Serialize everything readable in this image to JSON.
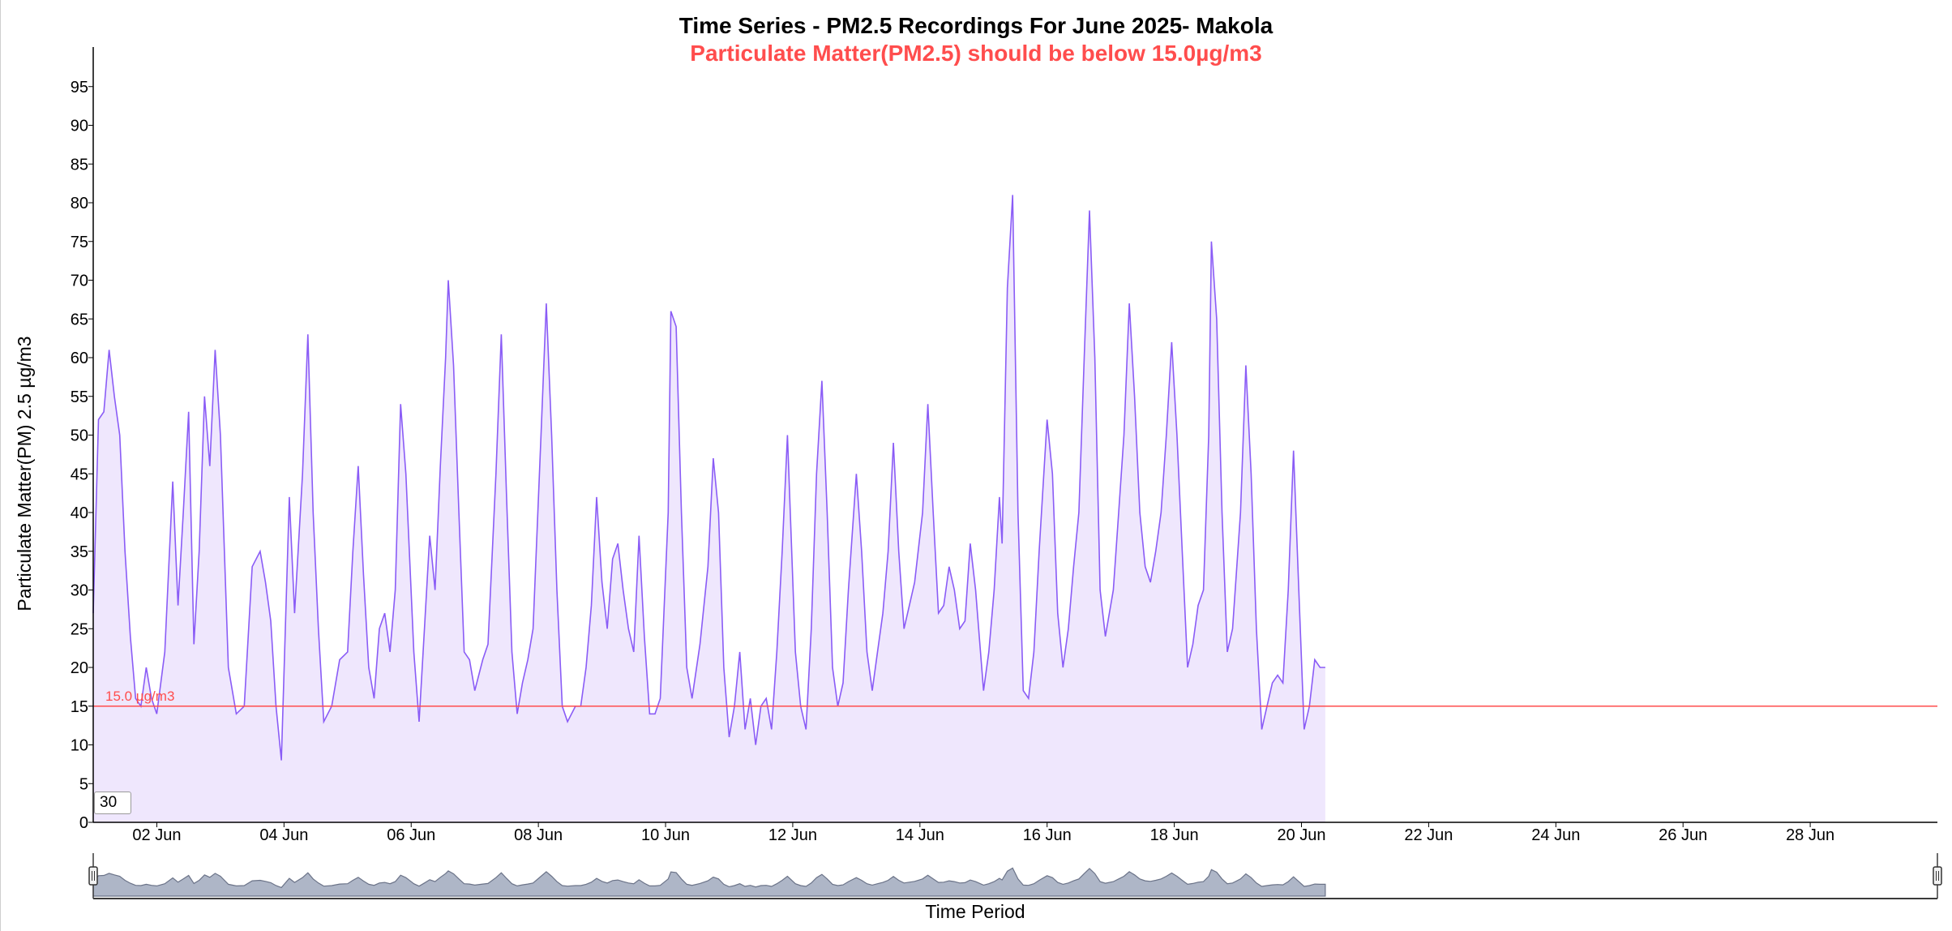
{
  "chart_data": {
    "type": "area",
    "title": "Time Series - PM2.5 Recordings For June 2025- Makola",
    "subtitle": "Particulate Matter(PM2.5) should be below 15.0µg/m3",
    "xlabel": "Time Period",
    "ylabel": "Particulate Matter(PM) 2.5 µg/m3",
    "ylim": [
      0,
      99
    ],
    "y_ticks": [
      0,
      5,
      10,
      15,
      20,
      25,
      30,
      35,
      40,
      45,
      50,
      55,
      60,
      65,
      70,
      75,
      80,
      85,
      90,
      95
    ],
    "x_range": [
      "2025-06-01T00:00",
      "2025-06-30T00:00"
    ],
    "x_ticks": [
      "02 Jun",
      "04 Jun",
      "06 Jun",
      "08 Jun",
      "10 Jun",
      "12 Jun",
      "14 Jun",
      "16 Jun",
      "18 Jun",
      "20 Jun",
      "22 Jun",
      "24 Jun",
      "26 Jun",
      "28 Jun"
    ],
    "threshold": {
      "value": 15,
      "label": "15.0 µg/m3",
      "color": "#ff4d4d"
    },
    "grid": false,
    "line_color": "#8a5cf6",
    "fill_color": "#efe7fd",
    "navigator": true,
    "series": [
      {
        "points": [
          [
            "2025-06-01T00:00",
            27
          ],
          [
            "2025-06-01T02:00",
            52
          ],
          [
            "2025-06-01T04:00",
            53
          ],
          [
            "2025-06-01T06:00",
            61
          ],
          [
            "2025-06-01T08:00",
            55
          ],
          [
            "2025-06-01T10:00",
            50
          ],
          [
            "2025-06-01T12:00",
            35
          ],
          [
            "2025-06-01T14:00",
            24
          ],
          [
            "2025-06-01T16:00",
            16
          ],
          [
            "2025-06-01T18:00",
            15
          ],
          [
            "2025-06-01T20:00",
            20
          ],
          [
            "2025-06-01T22:00",
            16
          ],
          [
            "2025-06-02T00:00",
            14
          ],
          [
            "2025-06-02T03:00",
            22
          ],
          [
            "2025-06-02T06:00",
            44
          ],
          [
            "2025-06-02T08:00",
            28
          ],
          [
            "2025-06-02T10:00",
            40
          ],
          [
            "2025-06-02T12:00",
            53
          ],
          [
            "2025-06-02T14:00",
            23
          ],
          [
            "2025-06-02T16:00",
            35
          ],
          [
            "2025-06-02T18:00",
            55
          ],
          [
            "2025-06-02T20:00",
            46
          ],
          [
            "2025-06-02T22:00",
            61
          ],
          [
            "2025-06-03T00:00",
            50
          ],
          [
            "2025-06-03T03:00",
            20
          ],
          [
            "2025-06-03T06:00",
            14
          ],
          [
            "2025-06-03T09:00",
            15
          ],
          [
            "2025-06-03T12:00",
            33
          ],
          [
            "2025-06-03T15:00",
            35
          ],
          [
            "2025-06-03T17:00",
            31
          ],
          [
            "2025-06-03T19:00",
            26
          ],
          [
            "2025-06-03T21:00",
            15
          ],
          [
            "2025-06-03T23:00",
            8
          ],
          [
            "2025-06-04T02:00",
            42
          ],
          [
            "2025-06-04T04:00",
            27
          ],
          [
            "2025-06-04T07:00",
            45
          ],
          [
            "2025-06-04T09:00",
            63
          ],
          [
            "2025-06-04T11:00",
            40
          ],
          [
            "2025-06-04T13:00",
            25
          ],
          [
            "2025-06-04T15:00",
            13
          ],
          [
            "2025-06-04T18:00",
            15
          ],
          [
            "2025-06-04T21:00",
            21
          ],
          [
            "2025-06-05T00:00",
            22
          ],
          [
            "2025-06-05T02:00",
            35
          ],
          [
            "2025-06-05T04:00",
            46
          ],
          [
            "2025-06-05T06:00",
            32
          ],
          [
            "2025-06-05T08:00",
            20
          ],
          [
            "2025-06-05T10:00",
            16
          ],
          [
            "2025-06-05T12:00",
            25
          ],
          [
            "2025-06-05T14:00",
            27
          ],
          [
            "2025-06-05T16:00",
            22
          ],
          [
            "2025-06-05T18:00",
            30
          ],
          [
            "2025-06-05T20:00",
            54
          ],
          [
            "2025-06-05T22:00",
            45
          ],
          [
            "2025-06-06T01:00",
            22
          ],
          [
            "2025-06-06T03:00",
            13
          ],
          [
            "2025-06-06T05:00",
            25
          ],
          [
            "2025-06-06T07:00",
            37
          ],
          [
            "2025-06-06T09:00",
            30
          ],
          [
            "2025-06-06T11:00",
            46
          ],
          [
            "2025-06-06T13:00",
            60
          ],
          [
            "2025-06-06T14:00",
            70
          ],
          [
            "2025-06-06T16:00",
            59
          ],
          [
            "2025-06-06T18:00",
            40
          ],
          [
            "2025-06-06T20:00",
            22
          ],
          [
            "2025-06-06T22:00",
            21
          ],
          [
            "2025-06-07T00:00",
            17
          ],
          [
            "2025-06-07T03:00",
            21
          ],
          [
            "2025-06-07T05:00",
            23
          ],
          [
            "2025-06-07T08:00",
            45
          ],
          [
            "2025-06-07T10:00",
            63
          ],
          [
            "2025-06-07T12:00",
            42
          ],
          [
            "2025-06-07T14:00",
            22
          ],
          [
            "2025-06-07T16:00",
            14
          ],
          [
            "2025-06-07T18:00",
            18
          ],
          [
            "2025-06-07T20:00",
            21
          ],
          [
            "2025-06-07T22:00",
            25
          ],
          [
            "2025-06-08T01:00",
            50
          ],
          [
            "2025-06-08T03:00",
            67
          ],
          [
            "2025-06-08T05:00",
            50
          ],
          [
            "2025-06-08T07:00",
            30
          ],
          [
            "2025-06-08T09:00",
            15
          ],
          [
            "2025-06-08T11:00",
            13
          ],
          [
            "2025-06-08T14:00",
            15
          ],
          [
            "2025-06-08T16:00",
            15
          ],
          [
            "2025-06-08T18:00",
            20
          ],
          [
            "2025-06-08T20:00",
            28
          ],
          [
            "2025-06-08T22:00",
            42
          ],
          [
            "2025-06-09T00:00",
            31
          ],
          [
            "2025-06-09T02:00",
            25
          ],
          [
            "2025-06-09T04:00",
            34
          ],
          [
            "2025-06-09T06:00",
            36
          ],
          [
            "2025-06-09T08:00",
            30
          ],
          [
            "2025-06-09T10:00",
            25
          ],
          [
            "2025-06-09T12:00",
            22
          ],
          [
            "2025-06-09T14:00",
            37
          ],
          [
            "2025-06-09T16:00",
            24
          ],
          [
            "2025-06-09T18:00",
            14
          ],
          [
            "2025-06-09T20:00",
            14
          ],
          [
            "2025-06-09T22:00",
            16
          ],
          [
            "2025-06-10T01:00",
            40
          ],
          [
            "2025-06-10T02:00",
            66
          ],
          [
            "2025-06-10T04:00",
            64
          ],
          [
            "2025-06-10T06:00",
            40
          ],
          [
            "2025-06-10T08:00",
            20
          ],
          [
            "2025-06-10T10:00",
            16
          ],
          [
            "2025-06-10T13:00",
            23
          ],
          [
            "2025-06-10T16:00",
            33
          ],
          [
            "2025-06-10T18:00",
            47
          ],
          [
            "2025-06-10T20:00",
            40
          ],
          [
            "2025-06-10T22:00",
            20
          ],
          [
            "2025-06-11T00:00",
            11
          ],
          [
            "2025-06-11T02:00",
            15
          ],
          [
            "2025-06-11T04:00",
            22
          ],
          [
            "2025-06-11T06:00",
            12
          ],
          [
            "2025-06-11T08:00",
            16
          ],
          [
            "2025-06-11T10:00",
            10
          ],
          [
            "2025-06-11T12:00",
            15
          ],
          [
            "2025-06-11T14:00",
            16
          ],
          [
            "2025-06-11T16:00",
            12
          ],
          [
            "2025-06-11T18:00",
            22
          ],
          [
            "2025-06-11T20:00",
            35
          ],
          [
            "2025-06-11T22:00",
            50
          ],
          [
            "2025-06-12T01:00",
            22
          ],
          [
            "2025-06-12T03:00",
            15
          ],
          [
            "2025-06-12T05:00",
            12
          ],
          [
            "2025-06-12T07:00",
            25
          ],
          [
            "2025-06-12T09:00",
            45
          ],
          [
            "2025-06-12T11:00",
            57
          ],
          [
            "2025-06-12T13:00",
            40
          ],
          [
            "2025-06-12T15:00",
            20
          ],
          [
            "2025-06-12T17:00",
            15
          ],
          [
            "2025-06-12T19:00",
            18
          ],
          [
            "2025-06-12T21:00",
            30
          ],
          [
            "2025-06-13T00:00",
            45
          ],
          [
            "2025-06-13T02:00",
            35
          ],
          [
            "2025-06-13T04:00",
            22
          ],
          [
            "2025-06-13T06:00",
            17
          ],
          [
            "2025-06-13T08:00",
            22
          ],
          [
            "2025-06-13T10:00",
            27
          ],
          [
            "2025-06-13T12:00",
            35
          ],
          [
            "2025-06-13T14:00",
            49
          ],
          [
            "2025-06-13T16:00",
            35
          ],
          [
            "2025-06-13T18:00",
            25
          ],
          [
            "2025-06-13T20:00",
            28
          ],
          [
            "2025-06-13T22:00",
            31
          ],
          [
            "2025-06-14T01:00",
            40
          ],
          [
            "2025-06-14T03:00",
            54
          ],
          [
            "2025-06-14T05:00",
            40
          ],
          [
            "2025-06-14T07:00",
            27
          ],
          [
            "2025-06-14T09:00",
            28
          ],
          [
            "2025-06-14T11:00",
            33
          ],
          [
            "2025-06-14T13:00",
            30
          ],
          [
            "2025-06-14T15:00",
            25
          ],
          [
            "2025-06-14T17:00",
            26
          ],
          [
            "2025-06-14T19:00",
            36
          ],
          [
            "2025-06-14T21:00",
            30
          ],
          [
            "2025-06-15T00:00",
            17
          ],
          [
            "2025-06-15T02:00",
            22
          ],
          [
            "2025-06-15T04:00",
            30
          ],
          [
            "2025-06-15T06:00",
            42
          ],
          [
            "2025-06-15T07:00",
            36
          ],
          [
            "2025-06-15T09:00",
            69
          ],
          [
            "2025-06-15T11:00",
            81
          ],
          [
            "2025-06-15T13:00",
            40
          ],
          [
            "2025-06-15T15:00",
            17
          ],
          [
            "2025-06-15T17:00",
            16
          ],
          [
            "2025-06-15T19:00",
            22
          ],
          [
            "2025-06-15T21:00",
            35
          ],
          [
            "2025-06-16T00:00",
            52
          ],
          [
            "2025-06-16T02:00",
            45
          ],
          [
            "2025-06-16T04:00",
            27
          ],
          [
            "2025-06-16T06:00",
            20
          ],
          [
            "2025-06-16T08:00",
            25
          ],
          [
            "2025-06-16T10:00",
            33
          ],
          [
            "2025-06-16T12:00",
            40
          ],
          [
            "2025-06-16T14:00",
            60
          ],
          [
            "2025-06-16T16:00",
            79
          ],
          [
            "2025-06-16T18:00",
            60
          ],
          [
            "2025-06-16T20:00",
            30
          ],
          [
            "2025-06-16T22:00",
            24
          ],
          [
            "2025-06-17T01:00",
            30
          ],
          [
            "2025-06-17T03:00",
            40
          ],
          [
            "2025-06-17T05:00",
            50
          ],
          [
            "2025-06-17T07:00",
            67
          ],
          [
            "2025-06-17T09:00",
            55
          ],
          [
            "2025-06-17T11:00",
            40
          ],
          [
            "2025-06-17T13:00",
            33
          ],
          [
            "2025-06-17T15:00",
            31
          ],
          [
            "2025-06-17T17:00",
            35
          ],
          [
            "2025-06-17T19:00",
            40
          ],
          [
            "2025-06-17T21:00",
            50
          ],
          [
            "2025-06-17T23:00",
            62
          ],
          [
            "2025-06-18T01:00",
            50
          ],
          [
            "2025-06-18T03:00",
            35
          ],
          [
            "2025-06-18T05:00",
            20
          ],
          [
            "2025-06-18T07:00",
            23
          ],
          [
            "2025-06-18T09:00",
            28
          ],
          [
            "2025-06-18T11:00",
            30
          ],
          [
            "2025-06-18T13:00",
            50
          ],
          [
            "2025-06-18T14:00",
            75
          ],
          [
            "2025-06-18T16:00",
            65
          ],
          [
            "2025-06-18T18:00",
            40
          ],
          [
            "2025-06-18T20:00",
            22
          ],
          [
            "2025-06-18T22:00",
            25
          ],
          [
            "2025-06-19T01:00",
            40
          ],
          [
            "2025-06-19T03:00",
            59
          ],
          [
            "2025-06-19T05:00",
            45
          ],
          [
            "2025-06-19T07:00",
            25
          ],
          [
            "2025-06-19T09:00",
            12
          ],
          [
            "2025-06-19T11:00",
            15
          ],
          [
            "2025-06-19T13:00",
            18
          ],
          [
            "2025-06-19T15:00",
            19
          ],
          [
            "2025-06-19T17:00",
            18
          ],
          [
            "2025-06-19T19:00",
            30
          ],
          [
            "2025-06-19T21:00",
            48
          ],
          [
            "2025-06-19T23:00",
            30
          ],
          [
            "2025-06-20T01:00",
            12
          ],
          [
            "2025-06-20T03:00",
            15
          ],
          [
            "2025-06-20T05:00",
            21
          ],
          [
            "2025-06-20T07:00",
            20
          ],
          [
            "2025-06-20T09:00",
            20
          ]
        ]
      }
    ]
  }
}
